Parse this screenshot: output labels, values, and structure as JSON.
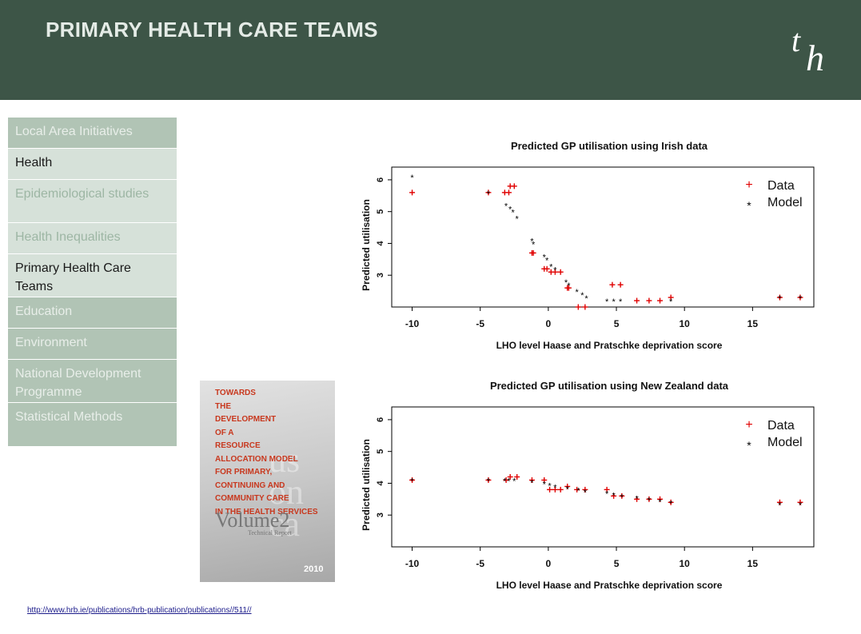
{
  "header": {
    "title": "PRIMARY HEALTH CARE TEAMS",
    "logo_text": "th"
  },
  "sidebar": {
    "items": [
      {
        "label": "Local Area Initiatives"
      },
      {
        "label": "Health"
      },
      {
        "label": "Epidemiological studies"
      },
      {
        "label": "Health Inequalities"
      },
      {
        "label": "Primary Health Care Teams"
      },
      {
        "label": "Education"
      },
      {
        "label": "Environment"
      },
      {
        "label": "National Development Programme"
      },
      {
        "label": "Statistical Methods"
      }
    ]
  },
  "cover": {
    "title": "TOWARDS\nTHE\nDEVELOPMENT\nOF A\nRESOURCE\nALLOCATION MODEL\nFOR PRIMARY,\nCONTINUING AND\nCOMMUNITY CARE\nIN THE HEALTH SERVICES",
    "volume": "Volume2",
    "subtitle": "Technical Report",
    "year": "2010"
  },
  "footer": {
    "link": "http://www.hrb.ie/publications/hrb-publication/publications//511//"
  },
  "colors": {
    "header_bg": "#3d5547",
    "data_color": "#e00000",
    "model_color": "#000000"
  },
  "chart_data": [
    {
      "type": "scatter",
      "title": "Predicted GP utilisation using Irish data",
      "xlabel": "LHO level Haase and Pratschke deprivation score",
      "ylabel": "Predicted utilisation",
      "xlim": [
        -11.5,
        19.5
      ],
      "ylim": [
        2.0,
        6.4
      ],
      "xticks": [
        "-10",
        "-5",
        "0",
        "5",
        "10",
        "15"
      ],
      "yticks": [
        "3",
        "4",
        "5",
        "6"
      ],
      "legend": {
        "position": "top-right",
        "entries": [
          "Data",
          "Model"
        ]
      },
      "series": [
        {
          "name": "Data",
          "marker": "+",
          "points": [
            [
              -10,
              5.6
            ],
            [
              -4.4,
              5.6
            ],
            [
              -3.2,
              5.6
            ],
            [
              -2.9,
              5.6
            ],
            [
              -2.8,
              5.8
            ],
            [
              -2.5,
              5.8
            ],
            [
              -1.2,
              3.7
            ],
            [
              -1.1,
              3.7
            ],
            [
              -0.3,
              3.2
            ],
            [
              -0.1,
              3.2
            ],
            [
              0.2,
              3.1
            ],
            [
              0.5,
              3.1
            ],
            [
              0.9,
              3.1
            ],
            [
              1.4,
              2.6
            ],
            [
              1.5,
              2.6
            ],
            [
              2.2,
              2.0
            ],
            [
              2.7,
              2.0
            ],
            [
              4.7,
              2.7
            ],
            [
              5.3,
              2.7
            ],
            [
              6.5,
              2.2
            ],
            [
              7.4,
              2.2
            ],
            [
              8.2,
              2.2
            ],
            [
              9.0,
              2.3
            ],
            [
              17.0,
              2.3
            ],
            [
              18.5,
              2.3
            ]
          ]
        },
        {
          "name": "Model",
          "marker": "*",
          "points": [
            [
              -10,
              6.1
            ],
            [
              -4.4,
              5.6
            ],
            [
              -3.1,
              5.2
            ],
            [
              -2.8,
              5.1
            ],
            [
              -2.6,
              5.0
            ],
            [
              -2.3,
              4.8
            ],
            [
              -1.2,
              4.1
            ],
            [
              -1.1,
              4.0
            ],
            [
              -0.3,
              3.6
            ],
            [
              -0.1,
              3.5
            ],
            [
              0.2,
              3.3
            ],
            [
              0.5,
              3.2
            ],
            [
              1.3,
              2.8
            ],
            [
              1.5,
              2.7
            ],
            [
              2.1,
              2.5
            ],
            [
              2.5,
              2.4
            ],
            [
              2.8,
              2.3
            ],
            [
              4.3,
              2.2
            ],
            [
              4.8,
              2.2
            ],
            [
              5.3,
              2.2
            ],
            [
              9.0,
              2.2
            ],
            [
              17.0,
              2.3
            ],
            [
              18.5,
              2.3
            ]
          ]
        }
      ]
    },
    {
      "type": "scatter",
      "title": "Predicted GP utilisation using New Zealand data",
      "xlabel": "LHO level Haase and Pratschke deprivation score",
      "ylabel": "Predicted utilisation",
      "xlim": [
        -11.5,
        19.5
      ],
      "ylim": [
        2.0,
        6.4
      ],
      "xticks": [
        "-10",
        "-5",
        "0",
        "5",
        "10",
        "15"
      ],
      "yticks": [
        "3",
        "4",
        "5",
        "6"
      ],
      "legend": {
        "position": "top-right",
        "entries": [
          "Data",
          "Model"
        ]
      },
      "series": [
        {
          "name": "Data",
          "marker": "+",
          "points": [
            [
              -10,
              4.1
            ],
            [
              -4.4,
              4.1
            ],
            [
              -3.1,
              4.1
            ],
            [
              -2.8,
              4.2
            ],
            [
              -2.3,
              4.2
            ],
            [
              -1.2,
              4.1
            ],
            [
              -0.3,
              4.1
            ],
            [
              0.1,
              3.8
            ],
            [
              0.5,
              3.8
            ],
            [
              0.9,
              3.8
            ],
            [
              1.4,
              3.9
            ],
            [
              2.1,
              3.8
            ],
            [
              2.7,
              3.8
            ],
            [
              4.3,
              3.8
            ],
            [
              4.8,
              3.6
            ],
            [
              5.4,
              3.6
            ],
            [
              6.5,
              3.5
            ],
            [
              7.4,
              3.5
            ],
            [
              8.2,
              3.5
            ],
            [
              9.0,
              3.4
            ],
            [
              17.0,
              3.4
            ],
            [
              18.5,
              3.4
            ]
          ]
        },
        {
          "name": "Model",
          "marker": "*",
          "points": [
            [
              -10,
              4.1
            ],
            [
              -4.4,
              4.1
            ],
            [
              -3.2,
              4.1
            ],
            [
              -2.9,
              4.1
            ],
            [
              -2.5,
              4.1
            ],
            [
              -1.2,
              4.05
            ],
            [
              -0.3,
              4.0
            ],
            [
              0.1,
              3.95
            ],
            [
              0.5,
              3.9
            ],
            [
              1.4,
              3.85
            ],
            [
              2.2,
              3.8
            ],
            [
              2.7,
              3.75
            ],
            [
              4.3,
              3.7
            ],
            [
              4.8,
              3.65
            ],
            [
              5.4,
              3.6
            ],
            [
              6.5,
              3.55
            ],
            [
              7.4,
              3.5
            ],
            [
              8.2,
              3.45
            ],
            [
              9.0,
              3.4
            ],
            [
              17.0,
              3.35
            ],
            [
              18.5,
              3.35
            ]
          ]
        }
      ]
    }
  ]
}
